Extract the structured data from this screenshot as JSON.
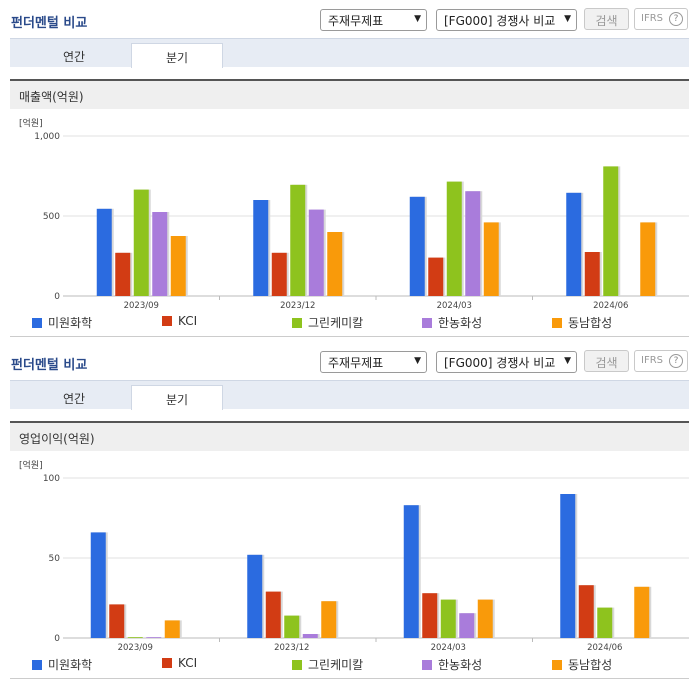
{
  "panels": [
    {
      "title": "펀더멘털 비교",
      "select1": "주재무제표",
      "select2": "[FG000] 경쟁사 비교",
      "search_label": "검색",
      "ifrs_label": "IFRS",
      "ifrs_help": "?",
      "tabs": [
        "연간",
        "분기"
      ],
      "active_tab": 1,
      "section_title": "매출액(억원)"
    },
    {
      "title": "펀더멘털 비교",
      "select1": "주재무제표",
      "select2": "[FG000] 경쟁사 비교",
      "search_label": "검색",
      "ifrs_label": "IFRS",
      "ifrs_help": "?",
      "tabs": [
        "연간",
        "분기"
      ],
      "active_tab": 1,
      "section_title": "영업이익(억원)"
    }
  ],
  "colors": {
    "series": [
      "#2b6be0",
      "#d23c14",
      "#8ec31e",
      "#a97cdb",
      "#f99a0a"
    ]
  },
  "chart_data": [
    {
      "type": "bar",
      "title": "매출액(억원)",
      "unit_label": "[억원]",
      "categories": [
        "2023/09",
        "2023/12",
        "2024/03",
        "2024/06"
      ],
      "ylim": [
        0,
        1000
      ],
      "yticks": [
        0,
        500,
        1000
      ],
      "ytick_labels": [
        "0",
        "500",
        "1,000"
      ],
      "grid": "horizontal",
      "legend": "bottom",
      "series": [
        {
          "name": "미원화학",
          "values": [
            545,
            600,
            620,
            645
          ]
        },
        {
          "name": "KCI",
          "values": [
            270,
            270,
            240,
            275
          ]
        },
        {
          "name": "그린케미칼",
          "values": [
            665,
            695,
            715,
            810
          ]
        },
        {
          "name": "한농화성",
          "values": [
            525,
            540,
            655,
            null
          ]
        },
        {
          "name": "동남합성",
          "values": [
            375,
            400,
            460,
            460
          ]
        }
      ]
    },
    {
      "type": "bar",
      "title": "영업이익(억원)",
      "unit_label": "[억원]",
      "categories": [
        "2023/09",
        "2023/12",
        "2024/03",
        "2024/06"
      ],
      "ylim": [
        0,
        100
      ],
      "yticks": [
        0,
        50,
        100
      ],
      "ytick_labels": [
        "0",
        "50",
        "100"
      ],
      "grid": "horizontal",
      "legend": "bottom",
      "series": [
        {
          "name": "미원화학",
          "values": [
            66,
            52,
            83,
            90
          ]
        },
        {
          "name": "KCI",
          "values": [
            21,
            29,
            28,
            33
          ]
        },
        {
          "name": "그린케미칼",
          "values": [
            0.5,
            14,
            24,
            19
          ]
        },
        {
          "name": "한농화성",
          "values": [
            0.5,
            2.5,
            15.5,
            null
          ]
        },
        {
          "name": "동남합성",
          "values": [
            11,
            23,
            24,
            32
          ]
        }
      ]
    }
  ]
}
